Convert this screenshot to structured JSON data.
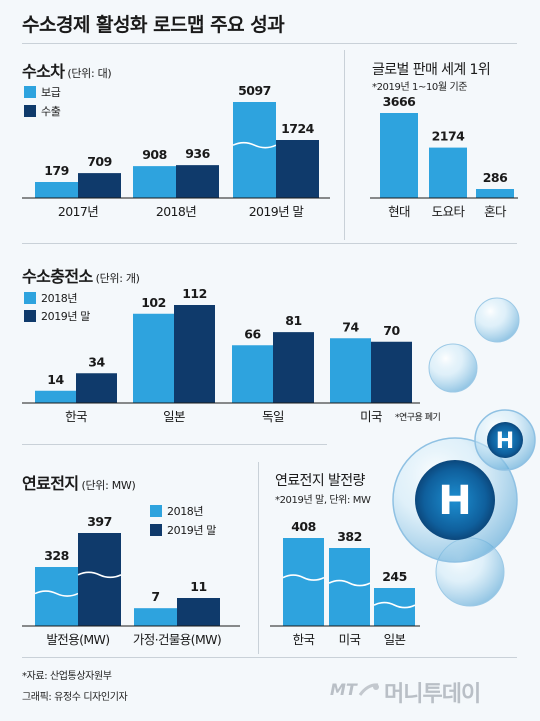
{
  "title": "수소경제 활성화 로드맵 주요 성과",
  "colors": {
    "light": "#2ea3de",
    "dark": "#0f3a6b",
    "bg": "#f4f8fb"
  },
  "hydrogen_car": {
    "title": "수소차",
    "unit": "(단위: 대)",
    "legend": [
      "보급",
      "수출"
    ]
  },
  "global_rank": {
    "title": "글로벌 판매 세계 1위",
    "note": "*2019년 1~10월 기준"
  },
  "station": {
    "title": "수소충전소",
    "unit": "(단위: 개)",
    "legend": [
      "2018년",
      "2019년 말"
    ],
    "footnote": "*연구용 폐기"
  },
  "fuel_cell": {
    "title": "연료전지",
    "unit": "(단위: MW)",
    "legend": [
      "2018년",
      "2019년 말"
    ]
  },
  "fuel_cell_gen": {
    "title": "연료전지 발전량",
    "note": "*2019년 말, 단위: MW"
  },
  "footer": {
    "source": "*자료: 산업통상자원부",
    "credit": "그래픽: 유정수 디자인기자",
    "brand_mt": "MT",
    "brand_name": "머니투데이"
  },
  "decor": {
    "molecule_letter": "H"
  },
  "chart_data": [
    {
      "id": "car",
      "type": "bar",
      "title": "수소차",
      "categories": [
        "2017년",
        "2018년",
        "2019년 말"
      ],
      "series": [
        {
          "name": "보급",
          "values": [
            179,
            908,
            5097
          ]
        },
        {
          "name": "수출",
          "values": [
            709,
            936,
            1724
          ]
        }
      ],
      "axis_break": true
    },
    {
      "id": "rank",
      "type": "bar",
      "title": "글로벌 판매 세계 1위",
      "categories": [
        "현대",
        "도요타",
        "혼다"
      ],
      "values": [
        3666,
        2174,
        286
      ]
    },
    {
      "id": "station",
      "type": "bar",
      "title": "수소충전소",
      "categories": [
        "한국",
        "일본",
        "독일",
        "미국"
      ],
      "series": [
        {
          "name": "2018년",
          "values": [
            14,
            102,
            66,
            74
          ]
        },
        {
          "name": "2019년 말",
          "values": [
            34,
            112,
            81,
            70
          ]
        }
      ]
    },
    {
      "id": "fuel",
      "type": "bar",
      "title": "연료전지",
      "categories": [
        "발전용(MW)",
        "가정·건물용(MW)"
      ],
      "series": [
        {
          "name": "2018년",
          "values": [
            328,
            7
          ]
        },
        {
          "name": "2019년 말",
          "values": [
            397,
            11
          ]
        }
      ],
      "axis_break": true
    },
    {
      "id": "gen",
      "type": "bar",
      "title": "연료전지 발전량",
      "categories": [
        "한국",
        "미국",
        "일본"
      ],
      "values": [
        408,
        382,
        245
      ],
      "axis_break": true
    }
  ]
}
